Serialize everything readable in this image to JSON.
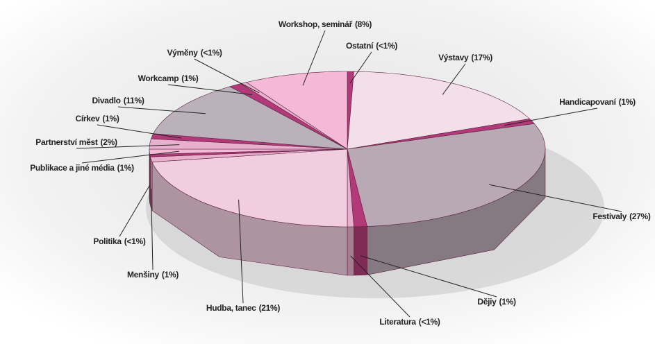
{
  "chart_data": {
    "type": "pie3d",
    "categories": [
      "Ostatní",
      "Výstavy",
      "Handicapovaní",
      "Festivaly",
      "Dějiy",
      "Literatura",
      "Hudba, tanec",
      "Menšiny",
      "Politika",
      "Publikace a jiné média",
      "Partnerství měst",
      "Církev",
      "Divadlo",
      "Workcamp",
      "Výměny",
      "Workshop, seminář"
    ],
    "values": [
      0.5,
      17,
      1,
      27,
      1,
      0.5,
      21,
      1,
      0.5,
      1,
      2,
      1,
      11,
      1,
      0.5,
      8
    ],
    "value_labels": [
      "(<1%)",
      "(17%)",
      "(1%)",
      "(27%)",
      "(1%)",
      "(<1%)",
      "(21%)",
      "(1%)",
      "(<1%)",
      "(1%)",
      "(2%)",
      "(1%)",
      "(11%)",
      "(1%)",
      "(<1%)",
      "(8%)"
    ],
    "colors": [
      "#b23a78",
      "#f2dfe8",
      "#b23a78",
      "#b9a9b5",
      "#b23a78",
      "#e8b0cc",
      "#f2cde0",
      "#e8b0cc",
      "#b23a78",
      "#f5b9d8",
      "#e8b0cc",
      "#b23a78",
      "#bab1ba",
      "#b23a78",
      "#e8b0cc",
      "#f5b9d8"
    ]
  }
}
